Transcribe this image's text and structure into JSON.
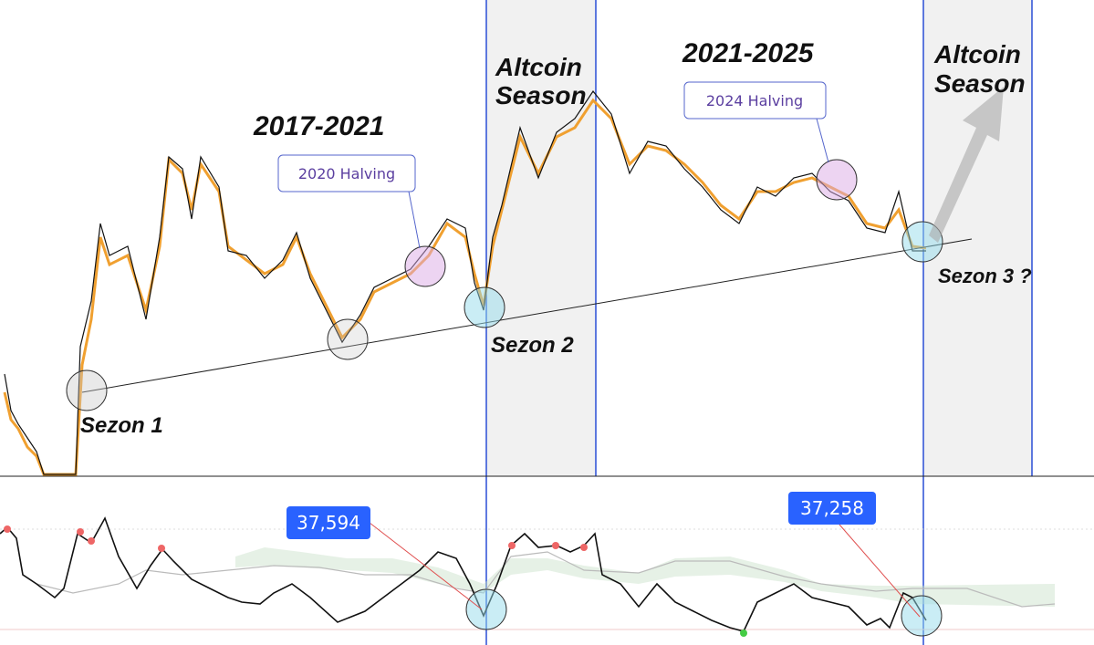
{
  "annotations": {
    "cycle_1": "2017-2021",
    "cycle_2": "2021-2025",
    "halving_1": "2020 Halving",
    "halving_2": "2024 Halving",
    "altcoin_season_1": [
      "Altcoin",
      "Season"
    ],
    "altcoin_season_2": [
      "Altcoin",
      "Season"
    ],
    "season_1": "Sezon 1",
    "season_2": "Sezon 2",
    "season_3": "Sezon 3 ?",
    "oscillator_label_1": "37,594",
    "oscillator_label_2": "37,258"
  }
}
